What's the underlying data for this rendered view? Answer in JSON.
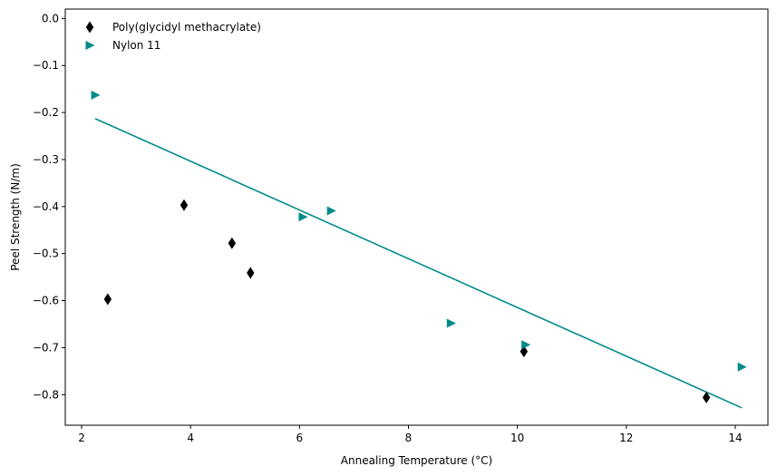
{
  "chart_data": {
    "type": "scatter",
    "title": "",
    "xlabel": "Annealing Temperature (°C)",
    "ylabel": "Peel Strength (N/m)",
    "xlim": [
      1.7,
      14.6
    ],
    "ylim": [
      -0.865,
      0.02
    ],
    "xticks": [
      2,
      4,
      6,
      8,
      10,
      12,
      14
    ],
    "xtick_labels": [
      "2",
      "4",
      "6",
      "8",
      "10",
      "12",
      "14"
    ],
    "yticks": [
      0.0,
      -0.1,
      -0.2,
      -0.3,
      -0.4,
      -0.5,
      -0.6,
      -0.7,
      -0.8
    ],
    "ytick_labels": [
      "0.0",
      "−0.1",
      "−0.2",
      "−0.3",
      "−0.4",
      "−0.5",
      "−0.6",
      "−0.7",
      "−0.8"
    ],
    "grid": false,
    "legend_position": "top-left",
    "series": [
      {
        "name": "Poly(glycidyl methacrylate)",
        "marker": "thin-diamond",
        "color": "#000000",
        "x": [
          2.48,
          3.88,
          4.76,
          5.1,
          10.12,
          13.47
        ],
        "y": [
          -0.597,
          -0.397,
          -0.478,
          -0.541,
          -0.708,
          -0.806
        ]
      },
      {
        "name": "Nylon 11",
        "marker": "triangle-right",
        "color": "#008b8b",
        "x": [
          2.25,
          6.06,
          6.58,
          8.78,
          10.15,
          14.12
        ],
        "y": [
          -0.163,
          -0.422,
          -0.409,
          -0.648,
          -0.694,
          -0.741
        ]
      }
    ],
    "fit_line": {
      "color": "#008b8b",
      "x": [
        2.25,
        14.12
      ],
      "y": [
        -0.213,
        -0.828
      ]
    }
  }
}
